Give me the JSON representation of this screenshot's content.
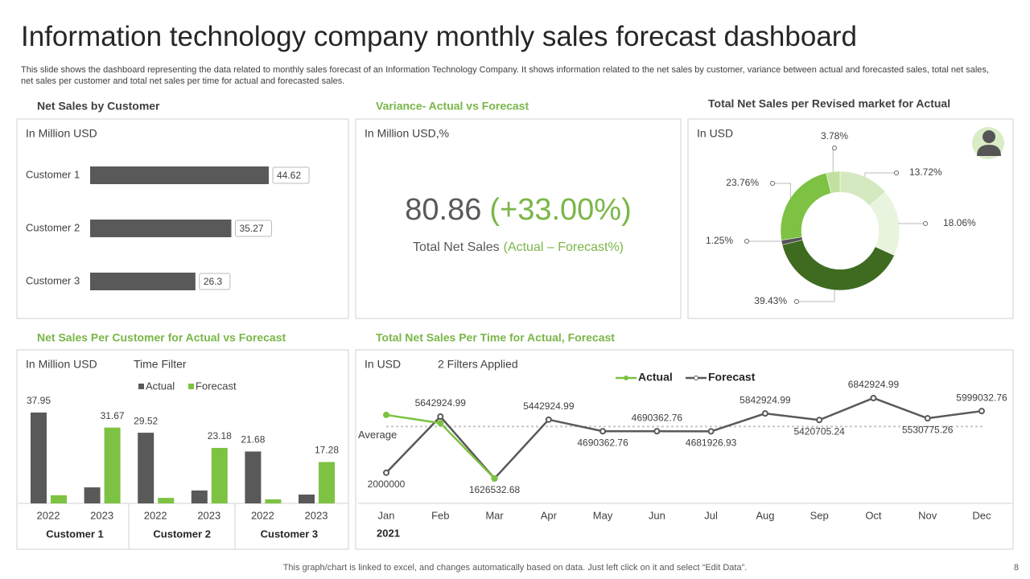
{
  "title": "Information technology company monthly sales forecast dashboard",
  "description": "This slide shows the dashboard representing the data related to monthly sales forecast of an Information Technology Company. It shows information related to the net sales by customer, variance between actual and forecasted sales, total net sales, net sales per customer and total net sales per time for actual and forecasted sales.",
  "footer": "This graph/chart is linked to excel, and changes automatically based on data. Just left click on it and select “Edit Data”.",
  "page_number": 8,
  "chart_data": [
    {
      "type": "hbar",
      "title": "Net Sales by Customer",
      "unit": "In Million  USD",
      "categories": [
        "Customer 1",
        "Customer 2",
        "Customer 3"
      ],
      "values": [
        44.62,
        35.27,
        26.3
      ],
      "color": "#595959"
    },
    {
      "type": "kpi",
      "title": "Variance- Actual vs Forecast",
      "unit": "In Million  USD,%",
      "value": 80.86,
      "change": "(+33.00%)",
      "label": "Total Net Sales",
      "sublabel": "(Actual – Forecast%)"
    },
    {
      "type": "donut",
      "title": "Total Net Sales per Revised  market for Actual",
      "unit": "In USD",
      "values": [
        13.72,
        18.06,
        39.43,
        1.25,
        23.76,
        3.78
      ],
      "value_labels": [
        "13.72%",
        "18.06%",
        "39.43%",
        "1.25%",
        "23.76%",
        "3.78%"
      ],
      "colors": [
        "#d5e9c0",
        "#e9f4de",
        "#3e6b1f",
        "#555555",
        "#7dc242",
        "#c2e19f"
      ]
    },
    {
      "type": "grouped_bar",
      "title": "Net Sales Per Customer for Actual vs Forecast",
      "unit": "In Million  USD",
      "filter": "Time Filter",
      "categories": [
        "2022",
        "2023",
        "2022",
        "2023",
        "2022",
        "2023"
      ],
      "groups": [
        "Customer 1",
        "Customer 2",
        "Customer 3"
      ],
      "series": [
        {
          "name": "Actual",
          "color": "#595959",
          "values": [
            37.95,
            6.7,
            29.52,
            5.4,
            21.68,
            3.7
          ],
          "labeled": [
            true,
            false,
            true,
            false,
            true,
            false
          ]
        },
        {
          "name": "Forecast",
          "color": "#7dc242",
          "values": [
            3.4,
            31.67,
            2.3,
            23.18,
            1.7,
            17.28
          ],
          "labeled": [
            false,
            true,
            false,
            true,
            false,
            true
          ]
        }
      ]
    },
    {
      "type": "line",
      "title": "Total Net Sales Per Time for Actual, Forecast",
      "unit": "In USD",
      "filter": "2 Filters Applied",
      "categories": [
        "Jan",
        "Feb",
        "Mar",
        "Apr",
        "May",
        "Jun",
        "Jul",
        "Aug",
        "Sep",
        "Oct",
        "Nov",
        "Dec"
      ],
      "x_label": "2021",
      "series": [
        {
          "name": "Actual",
          "color": "#7dc242",
          "values": [
            5750000,
            5220000,
            1626532.68,
            null,
            null,
            null,
            null,
            null,
            null,
            null,
            null,
            null
          ],
          "labeled": false
        },
        {
          "name": "Forecast",
          "color": "#595959",
          "values": [
            2000000,
            5642924.99,
            1626532.68,
            5442924.99,
            4690362.76,
            4690362.76,
            4681926.93,
            5842924.99,
            5420705.24,
            6842924.99,
            5530775.26,
            5999032.76
          ],
          "labeled": true
        }
      ],
      "average": 5000000,
      "average_label": "Average"
    }
  ]
}
